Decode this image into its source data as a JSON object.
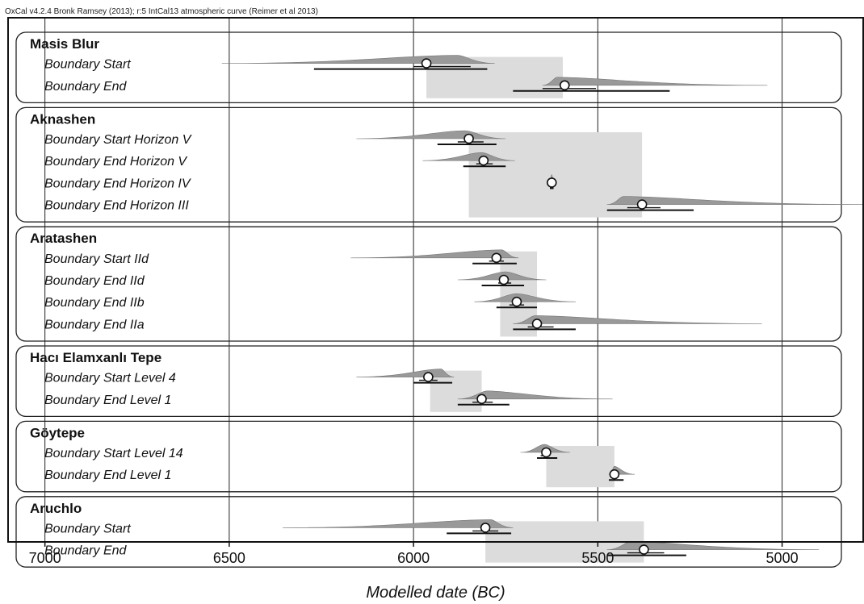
{
  "credit": "OxCal v4.2.4 Bronk Ramsey (2013); r:5 IntCal13 atmospheric curve (Reimer et al 2013)",
  "chart_data": {
    "type": "boundary-distribution",
    "xlabel": "Modelled date (BC)",
    "x_reversed": true,
    "xlim": [
      7100,
      4780
    ],
    "xticks": [
      7000,
      6500,
      6000,
      5500,
      5000
    ],
    "grid_x": true,
    "colors": {
      "dist": "#999999",
      "span": "#dcdcdc",
      "line": "#111111"
    },
    "groups": [
      {
        "name": "Masis Blur",
        "span": [
          5965,
          5595
        ],
        "rows": [
          {
            "label": "Boundary Start",
            "median": 5965,
            "r68": [
              6000,
              5845
            ],
            "r95": [
              6270,
              5800
            ],
            "tail": [
              6520,
              5780
            ],
            "peak": 5880
          },
          {
            "label": "Boundary End",
            "median": 5590,
            "r68": [
              5650,
              5505
            ],
            "r95": [
              5730,
              5305
            ],
            "tail": [
              5650,
              5040
            ],
            "peak": 5610
          }
        ]
      },
      {
        "name": "Aknashen",
        "span": [
          5850,
          5380
        ],
        "rows": [
          {
            "label": "Boundary Start Horizon V",
            "median": 5850,
            "r68": [
              5880,
              5810
            ],
            "r95": [
              5935,
              5775
            ],
            "tail": [
              6155,
              5750
            ],
            "peak": 5860
          },
          {
            "label": "Boundary End Horizon V",
            "median": 5810,
            "r68": [
              5830,
              5785
            ],
            "r95": [
              5865,
              5750
            ],
            "tail": [
              5975,
              5725
            ],
            "peak": 5815
          },
          {
            "label": "Boundary End Horizon IV",
            "median": 5625,
            "r68": [
              5628,
              5622
            ],
            "r95": [
              5630,
              5620
            ],
            "tail": [
              5632,
              5618
            ],
            "peak": 5625
          },
          {
            "label": "Boundary End Horizon III",
            "median": 5380,
            "r68": [
              5420,
              5330
            ],
            "r95": [
              5475,
              5240
            ],
            "tail": [
              5475,
              4780
            ],
            "peak": 5430
          }
        ]
      },
      {
        "name": "Aratashen",
        "span": [
          5765,
          5665
        ],
        "rows": [
          {
            "label": "Boundary Start IId",
            "median": 5775,
            "r68": [
              5795,
              5755
            ],
            "r95": [
              5840,
              5720
            ],
            "tail": [
              6170,
              5715
            ],
            "peak": 5760
          },
          {
            "label": "Boundary End IId",
            "median": 5755,
            "r68": [
              5770,
              5735
            ],
            "r95": [
              5815,
              5700
            ],
            "tail": [
              5880,
              5640
            ],
            "peak": 5750
          },
          {
            "label": "Boundary End IIb",
            "median": 5720,
            "r68": [
              5740,
              5700
            ],
            "r95": [
              5775,
              5665
            ],
            "tail": [
              5835,
              5560
            ],
            "peak": 5720
          },
          {
            "label": "Boundary End IIa",
            "median": 5665,
            "r68": [
              5690,
              5620
            ],
            "r95": [
              5730,
              5560
            ],
            "tail": [
              5730,
              5055
            ],
            "peak": 5670
          }
        ]
      },
      {
        "name": "Hacı Elamxanlı Tepe",
        "span": [
          5955,
          5815
        ],
        "rows": [
          {
            "label": "Boundary Start Level 4",
            "median": 5960,
            "r68": [
              5985,
              5935
            ],
            "r95": [
              6000,
              5895
            ],
            "tail": [
              6155,
              5890
            ],
            "peak": 5925
          },
          {
            "label": "Boundary End Level 1",
            "median": 5815,
            "r68": [
              5840,
              5785
            ],
            "r95": [
              5880,
              5740
            ],
            "tail": [
              5880,
              5460
            ],
            "peak": 5800
          }
        ]
      },
      {
        "name": "Göytepe",
        "span": [
          5640,
          5455
        ],
        "rows": [
          {
            "label": "Boundary Start Level 14",
            "median": 5640,
            "r68": [
              5655,
              5630
            ],
            "r95": [
              5665,
              5610
            ],
            "tail": [
              5710,
              5575
            ],
            "peak": 5645
          },
          {
            "label": "Boundary End Level 1",
            "median": 5455,
            "r68": [
              5462,
              5448
            ],
            "r95": [
              5470,
              5430
            ],
            "tail": [
              5470,
              5400
            ],
            "peak": 5455
          }
        ]
      },
      {
        "name": "Aruchlo",
        "span": [
          5805,
          5375
        ],
        "rows": [
          {
            "label": "Boundary Start",
            "median": 5805,
            "r68": [
              5840,
              5770
            ],
            "r95": [
              5910,
              5735
            ],
            "tail": [
              6355,
              5730
            ],
            "peak": 5790
          },
          {
            "label": "Boundary End",
            "median": 5375,
            "r68": [
              5420,
              5320
            ],
            "r95": [
              5475,
              5260
            ],
            "tail": [
              5475,
              4900
            ],
            "peak": 5410
          }
        ]
      }
    ]
  }
}
